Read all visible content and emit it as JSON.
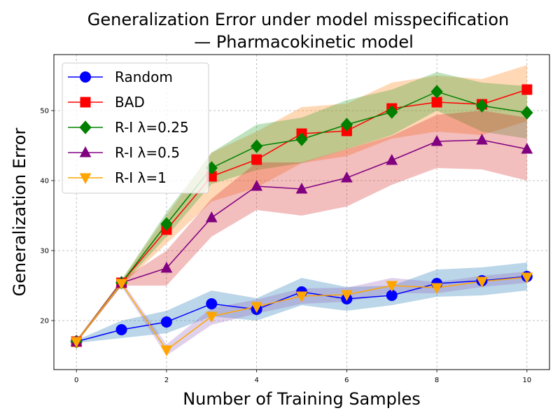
{
  "chart_data": {
    "type": "line",
    "title": "Generalization Error under model misspecification",
    "subtitle": "— Pharmacokinetic model",
    "xlabel": "Number of Training Samples",
    "ylabel": "Generalization Error",
    "xlim": [
      -0.5,
      10.5
    ],
    "ylim": [
      13,
      58
    ],
    "xticks": [
      "0",
      "2",
      "4",
      "6",
      "8",
      "10"
    ],
    "yticks": [
      "20",
      "30",
      "40",
      "50"
    ],
    "grid": true,
    "legend_position": "top-left",
    "x": [
      0,
      1,
      2,
      3,
      4,
      5,
      6,
      7,
      8,
      9,
      10
    ],
    "series": [
      {
        "name": "Random",
        "color": "#0000ff",
        "band_color": "#1f77b4",
        "marker": "circle",
        "values": [
          17.0,
          18.7,
          19.8,
          22.4,
          21.6,
          24.1,
          23.1,
          23.6,
          25.3,
          25.7,
          26.3
        ],
        "lower": [
          16.8,
          17.5,
          18.2,
          20.6,
          20.0,
          22.2,
          21.4,
          22.2,
          23.4,
          23.6,
          24.3
        ],
        "upper": [
          17.2,
          20.0,
          21.4,
          24.3,
          23.2,
          26.1,
          24.8,
          25.0,
          27.3,
          27.6,
          28.3
        ]
      },
      {
        "name": "BAD",
        "color": "#ff0000",
        "band_color": "#ff7f0e",
        "marker": "square",
        "values": [
          17.0,
          25.4,
          33.0,
          40.6,
          43.0,
          46.7,
          47.1,
          50.3,
          51.2,
          50.9,
          53.0
        ],
        "lower": [
          16.8,
          25.0,
          31.0,
          37.0,
          39.0,
          42.5,
          43.5,
          46.0,
          47.0,
          46.5,
          48.5
        ],
        "upper": [
          17.2,
          25.8,
          35.0,
          44.0,
          47.0,
          50.5,
          51.0,
          54.0,
          55.0,
          54.5,
          56.5
        ]
      },
      {
        "name": "R-I λ=0.25",
        "color": "#008000",
        "band_color": "#2ca02c",
        "marker": "diamond",
        "values": [
          17.0,
          25.4,
          33.8,
          41.8,
          44.9,
          45.9,
          48.0,
          49.8,
          52.7,
          50.7,
          49.7
        ],
        "lower": [
          16.8,
          25.0,
          32.0,
          39.5,
          41.5,
          42.5,
          44.5,
          46.5,
          50.0,
          47.0,
          46.0
        ],
        "upper": [
          17.2,
          25.8,
          35.5,
          44.0,
          48.0,
          49.0,
          51.5,
          53.0,
          55.5,
          54.0,
          53.5
        ]
      },
      {
        "name": "R-I λ=0.5",
        "color": "#800080",
        "band_color": "#d62728",
        "marker": "triangle-up",
        "values": [
          17.0,
          25.4,
          27.5,
          34.7,
          39.2,
          38.8,
          40.4,
          42.9,
          45.6,
          45.8,
          44.5
        ],
        "lower": [
          16.8,
          25.0,
          25.0,
          32.0,
          35.8,
          35.0,
          36.3,
          39.4,
          41.8,
          41.6,
          40.0
        ],
        "upper": [
          17.2,
          25.8,
          30.0,
          37.4,
          42.6,
          42.6,
          44.5,
          46.4,
          49.4,
          50.0,
          49.0
        ]
      },
      {
        "name": "R-I λ=1",
        "color": "#ffa500",
        "band_color": "#9467bd",
        "marker": "triangle-down",
        "values": [
          17.0,
          25.3,
          15.8,
          20.6,
          22.0,
          23.5,
          23.7,
          25.0,
          24.7,
          25.6,
          26.2
        ],
        "lower": [
          16.8,
          24.9,
          15.0,
          19.4,
          21.0,
          22.4,
          22.7,
          23.9,
          23.9,
          24.8,
          25.4
        ],
        "upper": [
          17.2,
          25.7,
          16.6,
          21.8,
          23.0,
          24.6,
          24.7,
          26.1,
          25.5,
          26.4,
          27.0
        ]
      }
    ]
  }
}
